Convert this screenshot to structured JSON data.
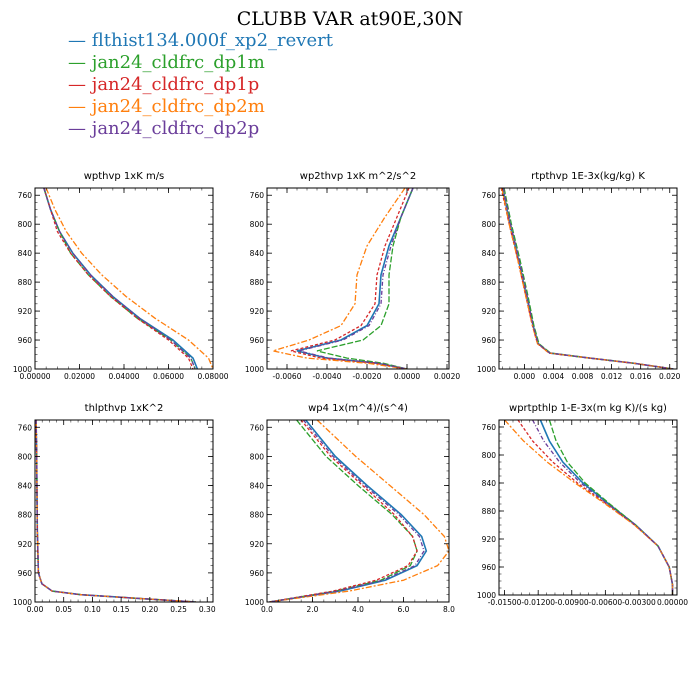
{
  "title": "CLUBB VAR at90E,30N",
  "legend": [
    {
      "label": "flthist134.000f_xp2_revert",
      "color": "#1f77b4"
    },
    {
      "label": "jan24_cldfrc_dp1m",
      "color": "#2ca02c"
    },
    {
      "label": "jan24_cldfrc_dp1p",
      "color": "#d62728"
    },
    {
      "label": "jan24_cldfrc_dp2m",
      "color": "#ff7f0e"
    },
    {
      "label": "jan24_cldfrc_dp2p",
      "color": "#6a3d9a"
    }
  ],
  "chart_data": [
    {
      "type": "line",
      "title": "wpthvp  1xK m/s",
      "xlim": [
        0,
        0.08
      ],
      "ylim": [
        1000,
        750
      ],
      "xticks": [
        "0.00000",
        "0.02000",
        "0.04000",
        "0.06000",
        "0.08000"
      ],
      "xtick_values": [
        0,
        0.02,
        0.04,
        0.06,
        0.08
      ],
      "yticks": [
        760,
        800,
        840,
        880,
        920,
        960,
        1000
      ],
      "y": [
        750,
        780,
        810,
        840,
        870,
        900,
        930,
        960,
        985,
        1000
      ],
      "series": [
        {
          "x": [
            0.004,
            0.007,
            0.011,
            0.017,
            0.025,
            0.035,
            0.047,
            0.062,
            0.071,
            0.073
          ]
        },
        {
          "x": [
            0.004,
            0.007,
            0.011,
            0.016,
            0.024,
            0.034,
            0.046,
            0.061,
            0.07,
            0.072
          ]
        },
        {
          "x": [
            0.004,
            0.007,
            0.01,
            0.016,
            0.024,
            0.034,
            0.046,
            0.06,
            0.069,
            0.071
          ]
        },
        {
          "x": [
            0.005,
            0.009,
            0.014,
            0.021,
            0.03,
            0.041,
            0.054,
            0.069,
            0.078,
            0.08
          ]
        },
        {
          "x": [
            0.004,
            0.007,
            0.011,
            0.017,
            0.025,
            0.035,
            0.047,
            0.061,
            0.07,
            0.072
          ]
        }
      ]
    },
    {
      "type": "line",
      "title": "wp2thvp  1xK m^2/s^2",
      "xlim": [
        -0.007,
        0.0021
      ],
      "ylim": [
        1000,
        750
      ],
      "xticks": [
        "-0.0060",
        "-0.0040",
        "-0.0020",
        "0.0000",
        "0.0020"
      ],
      "xtick_values": [
        -0.006,
        -0.004,
        -0.002,
        0,
        0.002
      ],
      "yticks": [
        760,
        800,
        840,
        880,
        920,
        960,
        1000
      ],
      "y": [
        750,
        790,
        830,
        870,
        910,
        940,
        960,
        975,
        985,
        992,
        1000
      ],
      "series": [
        {
          "x": [
            0.0003,
            -0.0003,
            -0.0009,
            -0.0013,
            -0.0014,
            -0.002,
            -0.0033,
            -0.0055,
            -0.004,
            -0.0015,
            0.0
          ]
        },
        {
          "x": [
            0.0003,
            -0.0003,
            -0.0007,
            -0.0009,
            -0.0009,
            -0.0013,
            -0.0022,
            -0.0045,
            -0.003,
            -0.0012,
            0.0
          ]
        },
        {
          "x": [
            0.0001,
            -0.0005,
            -0.0011,
            -0.0015,
            -0.0016,
            -0.0023,
            -0.0036,
            -0.0058,
            -0.0043,
            -0.0016,
            0.0
          ]
        },
        {
          "x": [
            -0.0001,
            -0.0011,
            -0.002,
            -0.0025,
            -0.0026,
            -0.0033,
            -0.0049,
            -0.0067,
            -0.005,
            -0.002,
            0.0
          ]
        },
        {
          "x": [
            0.0003,
            -0.0003,
            -0.0008,
            -0.0012,
            -0.0013,
            -0.0019,
            -0.0032,
            -0.0054,
            -0.0039,
            -0.0014,
            0.0
          ]
        }
      ]
    },
    {
      "type": "line",
      "title": "rtpthvp  1E-3x(kg/kg) K",
      "xlim": [
        -0.0035,
        0.021
      ],
      "ylim": [
        1000,
        750
      ],
      "xticks": [
        "0.000",
        "0.004",
        "0.008",
        "0.012",
        "0.016",
        "0.020"
      ],
      "xtick_values": [
        0,
        0.004,
        0.008,
        0.012,
        0.016,
        0.02
      ],
      "yticks": [
        760,
        800,
        840,
        880,
        920,
        960,
        1000
      ],
      "y": [
        750,
        800,
        850,
        900,
        940,
        965,
        978,
        985,
        992,
        1000
      ],
      "series": [
        {
          "x": [
            -0.003,
            -0.002,
            -0.0008,
            0.0003,
            0.0012,
            0.0019,
            0.0035,
            0.009,
            0.015,
            0.0205
          ]
        },
        {
          "x": [
            -0.0028,
            -0.0018,
            -0.0006,
            0.0005,
            0.0013,
            0.002,
            0.0036,
            0.009,
            0.015,
            0.0205
          ]
        },
        {
          "x": [
            -0.0032,
            -0.0021,
            -0.0009,
            0.0002,
            0.0011,
            0.0018,
            0.0034,
            0.009,
            0.015,
            0.0205
          ]
        },
        {
          "x": [
            -0.0031,
            -0.0021,
            -0.0009,
            0.0002,
            0.0011,
            0.0018,
            0.0034,
            0.009,
            0.015,
            0.0205
          ]
        },
        {
          "x": [
            -0.0029,
            -0.0019,
            -0.0007,
            0.0004,
            0.0012,
            0.0019,
            0.0035,
            0.009,
            0.015,
            0.0205
          ]
        }
      ]
    },
    {
      "type": "line",
      "title": "thlpthvp  1xK^2",
      "xlim": [
        0,
        0.31
      ],
      "ylim": [
        1000,
        750
      ],
      "xticks": [
        "0.00",
        "0.05",
        "0.10",
        "0.15",
        "0.20",
        "0.25",
        "0.30"
      ],
      "xtick_values": [
        0,
        0.05,
        0.1,
        0.15,
        0.2,
        0.25,
        0.3
      ],
      "yticks": [
        760,
        800,
        840,
        880,
        920,
        960,
        1000
      ],
      "y": [
        750,
        800,
        900,
        960,
        975,
        985,
        990,
        995,
        1000
      ],
      "series": [
        {
          "x": [
            0.002,
            0.003,
            0.004,
            0.006,
            0.012,
            0.03,
            0.08,
            0.18,
            0.28
          ]
        },
        {
          "x": [
            0.002,
            0.003,
            0.004,
            0.006,
            0.012,
            0.03,
            0.08,
            0.18,
            0.28
          ]
        },
        {
          "x": [
            0.002,
            0.003,
            0.004,
            0.006,
            0.012,
            0.03,
            0.08,
            0.18,
            0.28
          ]
        },
        {
          "x": [
            0.002,
            0.003,
            0.004,
            0.006,
            0.012,
            0.03,
            0.08,
            0.18,
            0.28
          ]
        },
        {
          "x": [
            0.002,
            0.003,
            0.004,
            0.006,
            0.012,
            0.03,
            0.08,
            0.18,
            0.28
          ]
        }
      ]
    },
    {
      "type": "line",
      "title": "wp4  1x(m^4)/(s^4)",
      "xlim": [
        0,
        8.0
      ],
      "ylim": [
        1000,
        750
      ],
      "xticks": [
        "0.0",
        "2.0",
        "4.0",
        "6.0",
        "8.0"
      ],
      "xtick_values": [
        0,
        2,
        4,
        6,
        8
      ],
      "yticks": [
        760,
        800,
        840,
        880,
        920,
        960,
        1000
      ],
      "y": [
        750,
        800,
        840,
        880,
        910,
        930,
        950,
        970,
        985,
        1000
      ],
      "series": [
        {
          "x": [
            1.7,
            3.0,
            4.4,
            5.9,
            6.8,
            7.0,
            6.6,
            5.2,
            3.2,
            0.1
          ]
        },
        {
          "x": [
            1.3,
            2.6,
            4.0,
            5.5,
            6.4,
            6.6,
            6.3,
            5.0,
            3.0,
            0.1
          ]
        },
        {
          "x": [
            1.5,
            2.8,
            4.2,
            5.6,
            6.4,
            6.6,
            6.2,
            4.8,
            2.9,
            0.1
          ]
        },
        {
          "x": [
            2.2,
            3.9,
            5.4,
            6.9,
            7.8,
            8.0,
            7.5,
            6.0,
            3.6,
            0.1
          ]
        },
        {
          "x": [
            1.6,
            2.9,
            4.3,
            5.8,
            6.7,
            6.9,
            6.5,
            5.1,
            3.1,
            0.1
          ]
        }
      ]
    },
    {
      "type": "line",
      "title": "wprtpthlp  1-E-3x(m kg K)/(s kg)",
      "xlim": [
        -0.0155,
        0.0004
      ],
      "ylim": [
        1000,
        750
      ],
      "xticks": [
        "-0.01500",
        "-0.01200",
        "-0.00900",
        "-0.00600",
        "-0.00300",
        "0.00000"
      ],
      "xtick_values": [
        -0.015,
        -0.012,
        -0.009,
        -0.006,
        -0.003,
        0
      ],
      "yticks": [
        760,
        800,
        840,
        880,
        920,
        960,
        1000
      ],
      "y": [
        750,
        780,
        810,
        840,
        870,
        900,
        930,
        960,
        985,
        1000
      ],
      "series": [
        {
          "x": [
            -0.0118,
            -0.011,
            -0.0098,
            -0.008,
            -0.0057,
            -0.0033,
            -0.0013,
            -0.0003,
            0.0,
            0.0
          ]
        },
        {
          "x": [
            -0.011,
            -0.0104,
            -0.0094,
            -0.0078,
            -0.0056,
            -0.0033,
            -0.0013,
            -0.0003,
            0.0,
            0.0
          ]
        },
        {
          "x": [
            -0.0138,
            -0.0125,
            -0.0107,
            -0.0085,
            -0.0059,
            -0.0034,
            -0.0013,
            -0.0003,
            0.0,
            0.0
          ]
        },
        {
          "x": [
            -0.015,
            -0.0133,
            -0.0112,
            -0.0087,
            -0.006,
            -0.0034,
            -0.0013,
            -0.0003,
            0.0,
            0.0
          ]
        },
        {
          "x": [
            -0.0125,
            -0.0115,
            -0.0101,
            -0.0082,
            -0.0058,
            -0.0033,
            -0.0013,
            -0.0003,
            0.0,
            0.0
          ]
        }
      ]
    }
  ]
}
